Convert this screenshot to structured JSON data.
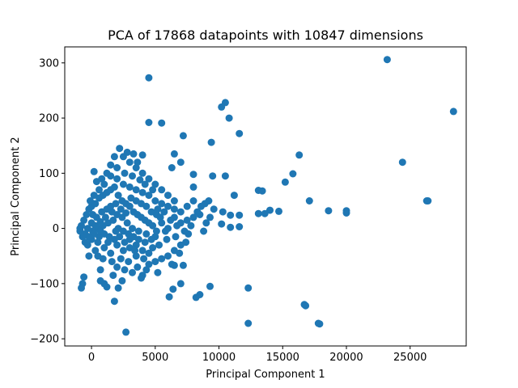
{
  "chart_data": {
    "type": "scatter",
    "title": "PCA of 17868 datapoints with 10847 dimensions",
    "xlabel": "Principal Component 1",
    "ylabel": "Principal Component 2",
    "xlim": [
      -2100,
      29400
    ],
    "ylim": [
      -213,
      329
    ],
    "xticks": [
      0,
      5000,
      10000,
      15000,
      20000,
      25000
    ],
    "yticks": [
      -200,
      -100,
      0,
      100,
      200,
      300
    ],
    "grid": false,
    "marker_color": "#1f77b4",
    "series": [
      {
        "points": [
          [
            23200,
            306
          ],
          [
            28400,
            212
          ],
          [
            4500,
            273
          ],
          [
            10500,
            228
          ],
          [
            10200,
            220
          ],
          [
            10800,
            200
          ],
          [
            11600,
            172
          ],
          [
            4500,
            192
          ],
          [
            5500,
            191
          ],
          [
            7200,
            168
          ],
          [
            9400,
            156
          ],
          [
            16300,
            133
          ],
          [
            24400,
            120
          ],
          [
            15800,
            99
          ],
          [
            15200,
            84
          ],
          [
            13100,
            69
          ],
          [
            13400,
            68
          ],
          [
            11200,
            60
          ],
          [
            26300,
            50
          ],
          [
            26400,
            50
          ],
          [
            17100,
            50
          ],
          [
            8000,
            50
          ],
          [
            8900,
            45
          ],
          [
            18600,
            32
          ],
          [
            20000,
            32
          ],
          [
            20000,
            28
          ],
          [
            14000,
            33
          ],
          [
            14700,
            31
          ],
          [
            13100,
            27
          ],
          [
            13600,
            27
          ],
          [
            10300,
            30
          ],
          [
            10900,
            24
          ],
          [
            11600,
            24
          ],
          [
            10200,
            8
          ],
          [
            10900,
            2
          ],
          [
            11600,
            3
          ],
          [
            9500,
            95
          ],
          [
            10500,
            95
          ],
          [
            8000,
            98
          ],
          [
            8000,
            75
          ],
          [
            6500,
            135
          ],
          [
            6300,
            110
          ],
          [
            7000,
            120
          ],
          [
            16700,
            -138
          ],
          [
            16800,
            -140
          ],
          [
            17800,
            -172
          ],
          [
            17900,
            -173
          ],
          [
            12300,
            -172
          ],
          [
            12300,
            -108
          ],
          [
            9300,
            -105
          ],
          [
            8500,
            -120
          ],
          [
            8200,
            -125
          ],
          [
            7000,
            -100
          ],
          [
            6400,
            -110
          ],
          [
            6100,
            -124
          ],
          [
            7200,
            -67
          ],
          [
            6500,
            -67
          ],
          [
            4500,
            -65
          ],
          [
            4000,
            -85
          ],
          [
            2700,
            -188
          ],
          [
            1800,
            -132
          ],
          [
            2100,
            -108
          ],
          [
            1200,
            -106
          ],
          [
            1000,
            -100
          ],
          [
            -700,
            -100
          ],
          [
            -800,
            -108
          ],
          [
            -600,
            -88
          ],
          [
            700,
            -95
          ],
          [
            -200,
            -50
          ],
          [
            700,
            -75
          ],
          [
            2600,
            -75
          ],
          [
            500,
            -50
          ],
          [
            3500,
            -50
          ],
          [
            3000,
            -35
          ],
          [
            4200,
            -25
          ],
          [
            5000,
            -15
          ],
          [
            5800,
            -5
          ],
          [
            5500,
            10
          ],
          [
            6000,
            0
          ],
          [
            6500,
            20
          ],
          [
            7000,
            30
          ],
          [
            7500,
            40
          ],
          [
            6500,
            50
          ],
          [
            6000,
            60
          ],
          [
            5500,
            70
          ],
          [
            5000,
            80
          ],
          [
            4500,
            90
          ],
          [
            4000,
            100
          ],
          [
            3500,
            110
          ],
          [
            3000,
            120
          ],
          [
            2500,
            130
          ],
          [
            2200,
            145
          ],
          [
            2800,
            138
          ],
          [
            3300,
            135
          ],
          [
            4000,
            133
          ],
          [
            3600,
            120
          ],
          [
            1800,
            130
          ],
          [
            1500,
            115
          ],
          [
            1200,
            100
          ],
          [
            200,
            103
          ],
          [
            400,
            85
          ],
          [
            800,
            90
          ],
          [
            1500,
            95
          ],
          [
            2000,
            90
          ],
          [
            2500,
            80
          ],
          [
            3000,
            75
          ],
          [
            3500,
            70
          ],
          [
            4000,
            65
          ],
          [
            4500,
            60
          ],
          [
            5000,
            50
          ],
          [
            5500,
            45
          ],
          [
            6000,
            40
          ],
          [
            6500,
            35
          ],
          [
            7000,
            10
          ],
          [
            7500,
            15
          ],
          [
            8000,
            20
          ],
          [
            8500,
            25
          ],
          [
            9000,
            10
          ],
          [
            8800,
            -5
          ],
          [
            7600,
            -10
          ],
          [
            7000,
            -30
          ],
          [
            6500,
            -40
          ],
          [
            6000,
            -50
          ],
          [
            5500,
            -55
          ],
          [
            5000,
            -60
          ],
          [
            4500,
            -45
          ],
          [
            4000,
            -40
          ],
          [
            3500,
            -30
          ],
          [
            3000,
            -20
          ],
          [
            2500,
            -40
          ],
          [
            2000,
            -30
          ],
          [
            1500,
            -45
          ],
          [
            1000,
            -35
          ],
          [
            500,
            -25
          ],
          [
            0,
            -20
          ],
          [
            -500,
            -10
          ],
          [
            -900,
            -5
          ],
          [
            -800,
            5
          ],
          [
            -600,
            15
          ],
          [
            -400,
            25
          ],
          [
            -200,
            35
          ],
          [
            0,
            40
          ],
          [
            300,
            45
          ],
          [
            600,
            55
          ],
          [
            900,
            60
          ],
          [
            1200,
            65
          ],
          [
            1500,
            70
          ],
          [
            1800,
            75
          ],
          [
            2100,
            60
          ],
          [
            2400,
            50
          ],
          [
            2700,
            45
          ],
          [
            3000,
            40
          ],
          [
            3300,
            30
          ],
          [
            3600,
            25
          ],
          [
            3900,
            20
          ],
          [
            4200,
            15
          ],
          [
            4500,
            10
          ],
          [
            4800,
            5
          ],
          [
            5100,
            -5
          ],
          [
            4700,
            -20
          ],
          [
            4300,
            -10
          ],
          [
            3700,
            -5
          ],
          [
            3200,
            0
          ],
          [
            2800,
            10
          ],
          [
            2400,
            20
          ],
          [
            2000,
            25
          ],
          [
            1600,
            30
          ],
          [
            1200,
            35
          ],
          [
            800,
            30
          ],
          [
            400,
            20
          ],
          [
            0,
            10
          ],
          [
            -300,
            0
          ],
          [
            100,
            -5
          ],
          [
            500,
            0
          ],
          [
            900,
            5
          ],
          [
            1300,
            10
          ],
          [
            1700,
            15
          ],
          [
            2100,
            0
          ],
          [
            2500,
            -5
          ],
          [
            2900,
            -10
          ],
          [
            3300,
            -15
          ],
          [
            3700,
            -20
          ],
          [
            1000,
            -10
          ],
          [
            1400,
            -15
          ],
          [
            1800,
            -20
          ],
          [
            2200,
            -15
          ],
          [
            600,
            -15
          ],
          [
            200,
            -10
          ],
          [
            -200,
            -15
          ],
          [
            -500,
            -25
          ],
          [
            300,
            5
          ],
          [
            700,
            12
          ],
          [
            1100,
            20
          ],
          [
            1500,
            40
          ],
          [
            1900,
            45
          ],
          [
            2300,
            35
          ],
          [
            2700,
            28
          ],
          [
            3100,
            55
          ],
          [
            3500,
            50
          ],
          [
            3900,
            45
          ],
          [
            4300,
            40
          ],
          [
            4700,
            30
          ],
          [
            5100,
            25
          ],
          [
            5400,
            20
          ],
          [
            5700,
            30
          ],
          [
            6200,
            15
          ],
          [
            6700,
            5
          ],
          [
            5200,
            35
          ],
          [
            4800,
            70
          ],
          [
            4200,
            80
          ],
          [
            3800,
            88
          ],
          [
            3200,
            95
          ],
          [
            2600,
            100
          ],
          [
            2000,
            110
          ],
          [
            1000,
            80
          ],
          [
            600,
            70
          ],
          [
            200,
            60
          ],
          [
            -100,
            50
          ],
          [
            100,
            25
          ],
          [
            700,
            -5
          ],
          [
            1300,
            -25
          ],
          [
            1900,
            -5
          ],
          [
            2600,
            -25
          ],
          [
            3400,
            -40
          ],
          [
            4100,
            -55
          ],
          [
            4800,
            -35
          ],
          [
            5300,
            -30
          ],
          [
            5900,
            -20
          ],
          [
            6600,
            -15
          ],
          [
            7300,
            -5
          ],
          [
            7800,
            5
          ],
          [
            8300,
            30
          ],
          [
            8600,
            40
          ],
          [
            9200,
            50
          ],
          [
            9600,
            35
          ],
          [
            9300,
            20
          ],
          [
            1600,
            -60
          ],
          [
            2300,
            -55
          ],
          [
            2900,
            -60
          ],
          [
            3600,
            -70
          ],
          [
            4300,
            -75
          ],
          [
            5200,
            -80
          ],
          [
            6300,
            -65
          ],
          [
            6900,
            -45
          ],
          [
            7400,
            -25
          ],
          [
            900,
            -55
          ],
          [
            300,
            -40
          ],
          [
            -300,
            -30
          ],
          [
            -700,
            -15
          ],
          [
            -900,
            0
          ],
          [
            1700,
            -85
          ],
          [
            2400,
            -95
          ],
          [
            3200,
            -80
          ],
          [
            3900,
            -90
          ],
          [
            2000,
            -70
          ]
        ]
      }
    ]
  }
}
